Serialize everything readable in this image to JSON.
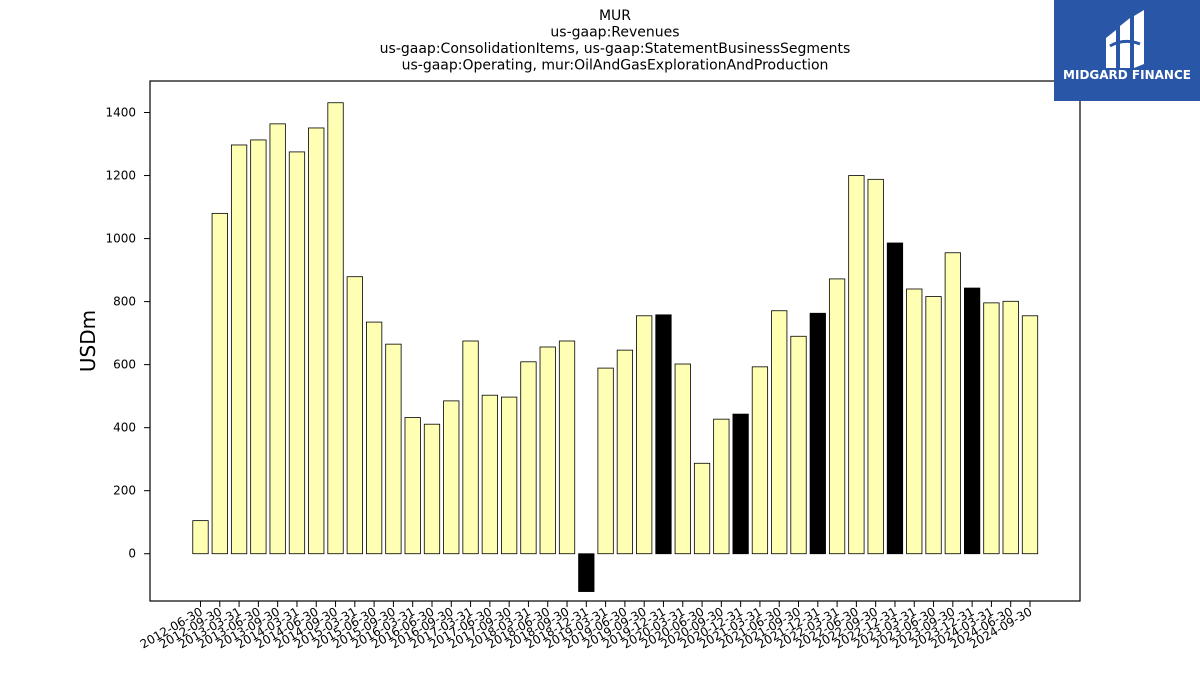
{
  "chart_data": {
    "type": "bar",
    "title_lines": [
      "MUR",
      "us-gaap:Revenues",
      "us-gaap:ConsolidationItems, us-gaap:StatementBusinessSegments",
      "us-gaap:Operating, mur:OilAndGasExplorationAndProduction"
    ],
    "ylabel": "USDm",
    "ylim": [
      -150,
      1500
    ],
    "yticks": [
      0,
      200,
      400,
      600,
      800,
      1000,
      1200,
      1400
    ],
    "categories": [
      "2012-06-30",
      "2012-09-30",
      "2013-03-31",
      "2013-06-30",
      "2013-09-30",
      "2014-03-31",
      "2014-06-30",
      "2014-09-30",
      "2015-03-31",
      "2015-06-30",
      "2015-09-30",
      "2016-03-31",
      "2016-06-30",
      "2016-09-30",
      "2017-03-31",
      "2017-06-30",
      "2017-09-30",
      "2018-03-31",
      "2018-06-30",
      "2018-09-30",
      "2018-12-31",
      "2019-03-31",
      "2019-06-30",
      "2019-09-30",
      "2019-12-31",
      "2020-03-31",
      "2020-06-30",
      "2020-09-30",
      "2020-12-31",
      "2021-03-31",
      "2021-06-30",
      "2021-09-30",
      "2021-12-31",
      "2022-03-31",
      "2022-06-30",
      "2022-09-30",
      "2022-12-31",
      "2023-03-31",
      "2023-06-30",
      "2023-09-30",
      "2023-12-31",
      "2024-03-31",
      "2024-06-30",
      "2024-09-30"
    ],
    "values": [
      105,
      1080,
      1297,
      1313,
      1364,
      1275,
      1351,
      1431,
      879,
      735,
      665,
      432,
      411,
      485,
      675,
      503,
      497,
      609,
      656,
      675,
      -120,
      589,
      646,
      755,
      758,
      602,
      287,
      427,
      443,
      593,
      771,
      690,
      763,
      872,
      1200,
      1188,
      986,
      840,
      816,
      955,
      843,
      796,
      801,
      755
    ],
    "highlighted": [
      false,
      false,
      false,
      false,
      false,
      false,
      false,
      false,
      false,
      false,
      false,
      false,
      false,
      false,
      false,
      false,
      false,
      false,
      false,
      false,
      true,
      false,
      false,
      false,
      true,
      false,
      false,
      false,
      true,
      false,
      false,
      false,
      true,
      false,
      false,
      false,
      true,
      false,
      false,
      false,
      true,
      false,
      false,
      false
    ],
    "colors": {
      "normal": "#ffffb3",
      "highlight": "#000000",
      "edge": "#000000"
    }
  },
  "logo": {
    "text": "MIDGARD FINANCE",
    "background": "#2a56a8"
  }
}
